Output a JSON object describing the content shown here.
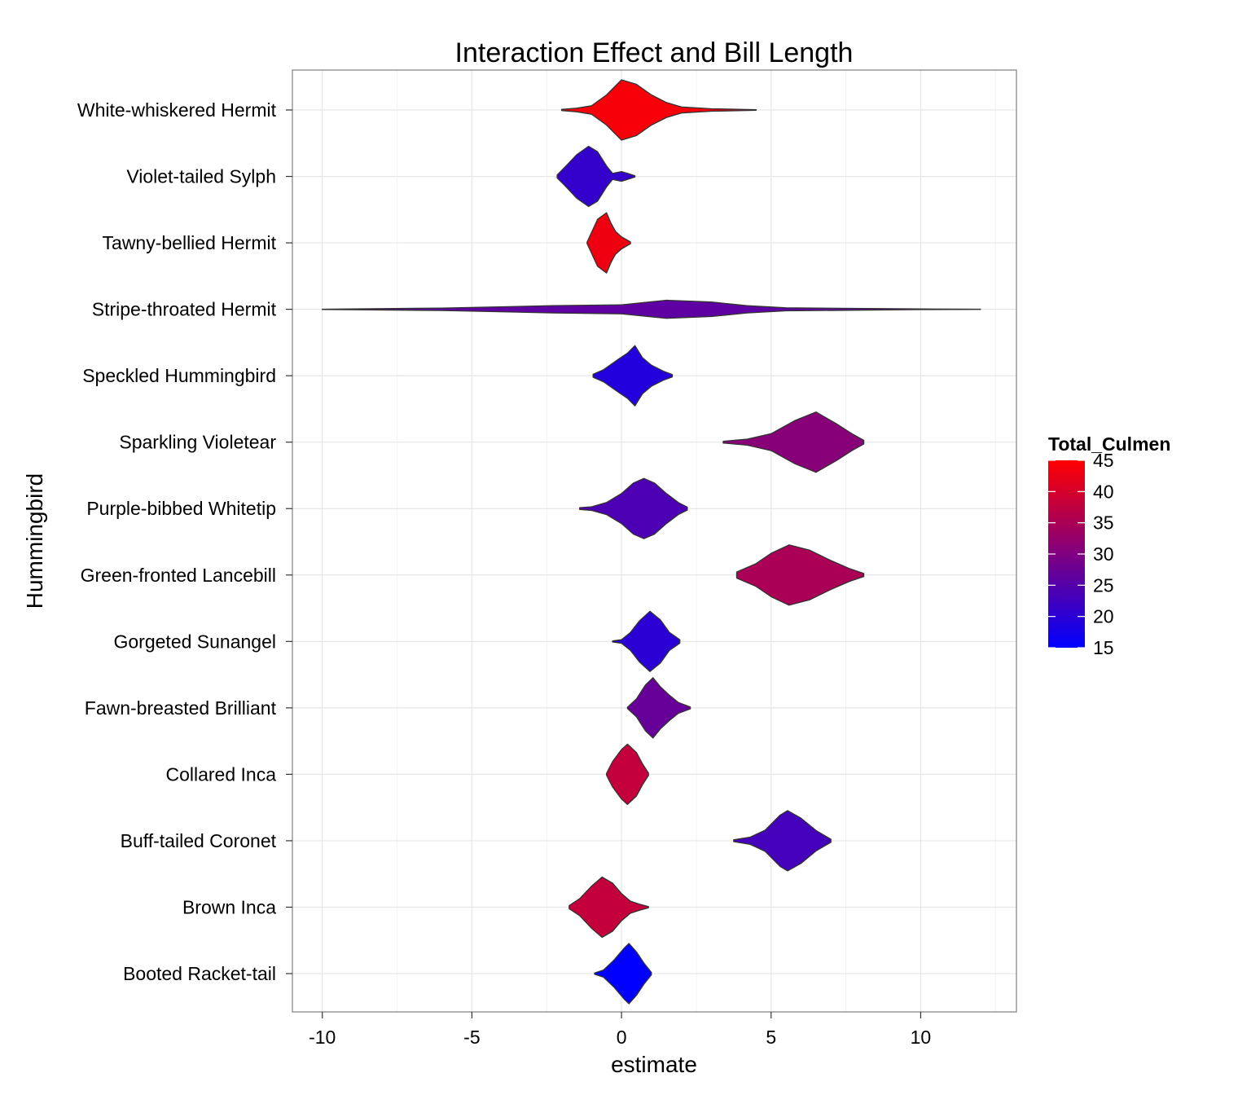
{
  "chart_data": {
    "type": "violin",
    "title": "Interaction Effect and Bill Length",
    "xlabel": "estimate",
    "ylabel": "Hummingbird",
    "xlim": [
      -11,
      13.2
    ],
    "x_ticks": [
      -10,
      -5,
      0,
      5,
      10
    ],
    "grid": true,
    "legend": {
      "title": "Total_Culmen",
      "position": "right",
      "min": 15,
      "max": 45,
      "ticks": [
        15,
        20,
        25,
        30,
        35,
        40,
        45
      ],
      "color_low": "#0000FF",
      "color_high": "#FF0000"
    },
    "categories": [
      "White-whiskered Hermit",
      "Violet-tailed Sylph",
      "Tawny-bellied Hermit",
      "Stripe-throated Hermit",
      "Speckled Hummingbird",
      "Sparkling Violetear",
      "Purple-bibbed Whitetip",
      "Green-fronted Lancebill",
      "Gorgeted Sunangel",
      "Fawn-breasted Brilliant",
      "Collared Inca",
      "Buff-tailed Coronet",
      "Brown Inca",
      "Booted Racket-tail"
    ],
    "series": [
      {
        "name": "White-whiskered Hermit",
        "total_culmen": 44,
        "profile": [
          [
            -2.0,
            0.02
          ],
          [
            -1.5,
            0.06
          ],
          [
            -1.0,
            0.14
          ],
          [
            -0.5,
            0.5
          ],
          [
            0.0,
            1.0
          ],
          [
            0.5,
            0.85
          ],
          [
            1.0,
            0.5
          ],
          [
            1.5,
            0.25
          ],
          [
            2.0,
            0.1
          ],
          [
            3.0,
            0.04
          ],
          [
            4.5,
            0.01
          ]
        ]
      },
      {
        "name": "Violet-tailed Sylph",
        "total_culmen": 21,
        "profile": [
          [
            -2.15,
            0.05
          ],
          [
            -1.9,
            0.3
          ],
          [
            -1.5,
            0.72
          ],
          [
            -1.1,
            1.0
          ],
          [
            -0.8,
            0.82
          ],
          [
            -0.5,
            0.35
          ],
          [
            -0.3,
            0.1
          ],
          [
            0.0,
            0.16
          ],
          [
            0.2,
            0.1
          ],
          [
            0.45,
            0.02
          ]
        ]
      },
      {
        "name": "Tawny-bellied Hermit",
        "total_culmen": 43,
        "profile": [
          [
            -1.15,
            0.02
          ],
          [
            -1.0,
            0.35
          ],
          [
            -0.8,
            0.78
          ],
          [
            -0.5,
            1.0
          ],
          [
            -0.35,
            0.65
          ],
          [
            -0.2,
            0.38
          ],
          [
            0.0,
            0.2
          ],
          [
            0.3,
            0.03
          ]
        ]
      },
      {
        "name": "Stripe-throated Hermit",
        "total_culmen": 26,
        "profile": [
          [
            -10.0,
            0.004
          ],
          [
            -6.0,
            0.04
          ],
          [
            -2.3,
            0.12
          ],
          [
            0.0,
            0.15
          ],
          [
            1.5,
            0.3
          ],
          [
            3.0,
            0.24
          ],
          [
            4.2,
            0.12
          ],
          [
            5.5,
            0.05
          ],
          [
            10.0,
            0.01
          ],
          [
            12.0,
            0.003
          ]
        ]
      },
      {
        "name": "Speckled Hummingbird",
        "total_culmen": 19,
        "profile": [
          [
            -0.95,
            0.05
          ],
          [
            -0.6,
            0.2
          ],
          [
            -0.1,
            0.55
          ],
          [
            0.2,
            0.75
          ],
          [
            0.45,
            1.0
          ],
          [
            0.7,
            0.6
          ],
          [
            1.0,
            0.35
          ],
          [
            1.4,
            0.15
          ],
          [
            1.7,
            0.04
          ]
        ]
      },
      {
        "name": "Sparkling Violetear",
        "total_culmen": 31,
        "profile": [
          [
            3.4,
            0.03
          ],
          [
            4.2,
            0.1
          ],
          [
            5.0,
            0.28
          ],
          [
            5.8,
            0.72
          ],
          [
            6.5,
            1.0
          ],
          [
            7.2,
            0.6
          ],
          [
            7.7,
            0.28
          ],
          [
            8.1,
            0.06
          ]
        ]
      },
      {
        "name": "Purple-bibbed Whitetip",
        "total_culmen": 24,
        "profile": [
          [
            -1.4,
            0.03
          ],
          [
            -1.0,
            0.06
          ],
          [
            -0.5,
            0.2
          ],
          [
            0.0,
            0.5
          ],
          [
            0.4,
            0.85
          ],
          [
            0.75,
            1.0
          ],
          [
            1.1,
            0.85
          ],
          [
            1.5,
            0.5
          ],
          [
            1.9,
            0.2
          ],
          [
            2.2,
            0.05
          ]
        ]
      },
      {
        "name": "Green-fronted Lancebill",
        "total_culmen": 35,
        "profile": [
          [
            3.85,
            0.1
          ],
          [
            4.5,
            0.38
          ],
          [
            5.0,
            0.72
          ],
          [
            5.6,
            1.0
          ],
          [
            6.3,
            0.82
          ],
          [
            7.0,
            0.48
          ],
          [
            7.6,
            0.22
          ],
          [
            8.1,
            0.05
          ]
        ]
      },
      {
        "name": "Gorgeted Sunangel",
        "total_culmen": 20,
        "profile": [
          [
            -0.3,
            0.02
          ],
          [
            0.0,
            0.06
          ],
          [
            0.3,
            0.3
          ],
          [
            0.6,
            0.68
          ],
          [
            0.95,
            1.0
          ],
          [
            1.3,
            0.72
          ],
          [
            1.6,
            0.3
          ],
          [
            1.95,
            0.06
          ]
        ]
      },
      {
        "name": "Fawn-breasted Brilliant",
        "total_culmen": 27,
        "profile": [
          [
            0.2,
            0.02
          ],
          [
            0.5,
            0.3
          ],
          [
            0.8,
            0.76
          ],
          [
            1.05,
            1.0
          ],
          [
            1.3,
            0.7
          ],
          [
            1.6,
            0.42
          ],
          [
            1.9,
            0.18
          ],
          [
            2.3,
            0.03
          ]
        ]
      },
      {
        "name": "Collared Inca",
        "total_culmen": 38,
        "profile": [
          [
            -0.5,
            0.03
          ],
          [
            -0.3,
            0.42
          ],
          [
            0.0,
            0.82
          ],
          [
            0.2,
            1.0
          ],
          [
            0.5,
            0.72
          ],
          [
            0.7,
            0.35
          ],
          [
            0.9,
            0.04
          ]
        ]
      },
      {
        "name": "Buff-tailed Coronet",
        "total_culmen": 23,
        "profile": [
          [
            3.75,
            0.03
          ],
          [
            4.3,
            0.12
          ],
          [
            4.8,
            0.35
          ],
          [
            5.3,
            0.85
          ],
          [
            5.55,
            1.0
          ],
          [
            6.0,
            0.75
          ],
          [
            6.5,
            0.34
          ],
          [
            7.0,
            0.05
          ]
        ]
      },
      {
        "name": "Brown Inca",
        "total_culmen": 38,
        "profile": [
          [
            -1.75,
            0.05
          ],
          [
            -1.4,
            0.28
          ],
          [
            -1.0,
            0.7
          ],
          [
            -0.65,
            1.0
          ],
          [
            -0.3,
            0.8
          ],
          [
            0.0,
            0.45
          ],
          [
            0.3,
            0.2
          ],
          [
            0.6,
            0.1
          ],
          [
            0.9,
            0.02
          ]
        ]
      },
      {
        "name": "Booted Racket-tail",
        "total_culmen": 15,
        "profile": [
          [
            -0.9,
            0.02
          ],
          [
            -0.6,
            0.12
          ],
          [
            -0.25,
            0.45
          ],
          [
            0.1,
            0.86
          ],
          [
            0.25,
            1.0
          ],
          [
            0.5,
            0.72
          ],
          [
            0.75,
            0.35
          ],
          [
            1.0,
            0.04
          ]
        ]
      }
    ]
  }
}
